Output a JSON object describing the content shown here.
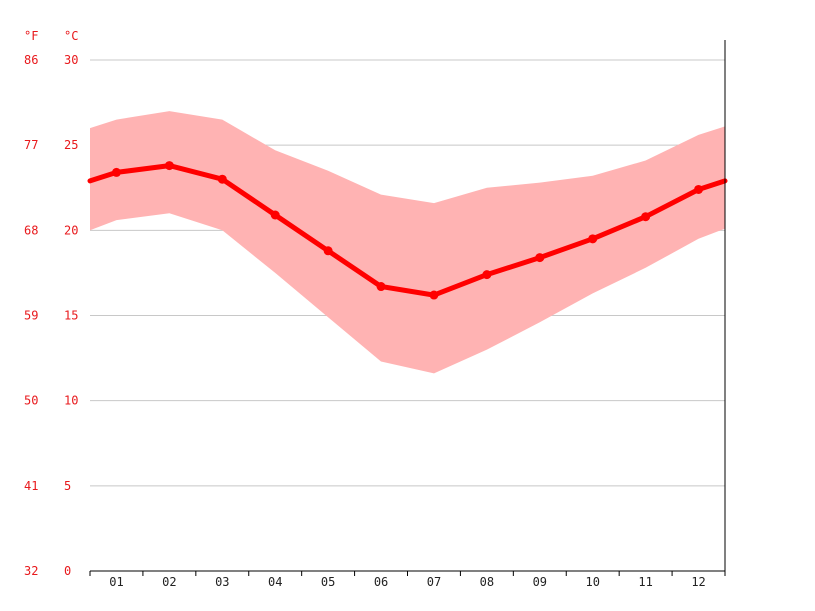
{
  "chart_data": {
    "type": "line",
    "x_label_unit_f": "°F",
    "y_label_unit_c": "°C",
    "categories": [
      "01",
      "02",
      "03",
      "04",
      "05",
      "06",
      "07",
      "08",
      "09",
      "10",
      "11",
      "12"
    ],
    "celsius_ticks": [
      "0",
      "5",
      "10",
      "15",
      "20",
      "25",
      "30"
    ],
    "fahrenheit_ticks": [
      "32",
      "41",
      "50",
      "59",
      "68",
      "77",
      "86"
    ],
    "ylim": [
      0,
      30
    ],
    "series": [
      {
        "values": [
          23.4,
          23.8,
          23.0,
          20.9,
          18.8,
          16.7,
          16.2,
          17.4,
          18.4,
          19.5,
          20.8,
          22.4
        ],
        "color": "#ff0000"
      }
    ],
    "band": {
      "upper": [
        26.5,
        27.0,
        26.5,
        24.7,
        23.5,
        22.1,
        21.6,
        22.5,
        22.8,
        23.2,
        24.1,
        25.6
      ],
      "lower": [
        20.6,
        21.0,
        20.0,
        17.5,
        14.9,
        12.3,
        11.6,
        13.0,
        14.6,
        16.3,
        17.8,
        19.5
      ],
      "color": "#ffb3b3"
    },
    "edge": {
      "left": {
        "mean": 22.9,
        "upper": 26.0,
        "lower": 20.0
      },
      "right": {
        "mean": 22.9,
        "upper": 26.1,
        "lower": 20.1
      }
    },
    "grid": true
  }
}
